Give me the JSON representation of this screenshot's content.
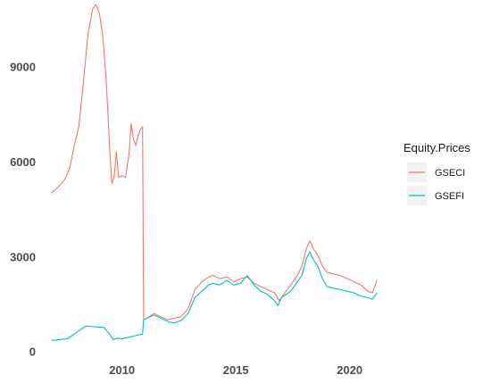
{
  "chart_data": {
    "type": "line",
    "title": "",
    "xlabel": "",
    "ylabel": "",
    "xlim": [
      2006.6,
      2021.5
    ],
    "ylim": [
      -150,
      11100
    ],
    "x_ticks": [
      {
        "value": 2010,
        "label": "2010"
      },
      {
        "value": 2015,
        "label": "2015"
      },
      {
        "value": 2020,
        "label": "2020"
      }
    ],
    "y_ticks": [
      {
        "value": 0,
        "label": "0"
      },
      {
        "value": 3000,
        "label": "3000"
      },
      {
        "value": 6000,
        "label": "6000"
      },
      {
        "value": 9000,
        "label": "9000"
      }
    ],
    "grid": false,
    "legend": {
      "title": "Equity.Prices",
      "position": "right"
    },
    "series": [
      {
        "name": "GSECI",
        "color": "#F8766D",
        "points": [
          [
            2006.9,
            5000
          ],
          [
            2007.2,
            5200
          ],
          [
            2007.5,
            5450
          ],
          [
            2007.7,
            5800
          ],
          [
            2007.9,
            6500
          ],
          [
            2008.1,
            7100
          ],
          [
            2008.3,
            8500
          ],
          [
            2008.5,
            10000
          ],
          [
            2008.7,
            10800
          ],
          [
            2008.85,
            10950
          ],
          [
            2009.0,
            10700
          ],
          [
            2009.15,
            10000
          ],
          [
            2009.3,
            8600
          ],
          [
            2009.45,
            6500
          ],
          [
            2009.55,
            5300
          ],
          [
            2009.65,
            5500
          ],
          [
            2009.75,
            6300
          ],
          [
            2009.85,
            5500
          ],
          [
            2010.0,
            5550
          ],
          [
            2010.15,
            5500
          ],
          [
            2010.3,
            6200
          ],
          [
            2010.4,
            7200
          ],
          [
            2010.5,
            6700
          ],
          [
            2010.6,
            6500
          ],
          [
            2010.7,
            6800
          ],
          [
            2010.8,
            7000
          ],
          [
            2010.9,
            7100
          ],
          [
            2010.95,
            1000
          ],
          [
            2011.1,
            1050
          ],
          [
            2011.4,
            1200
          ],
          [
            2011.7,
            1100
          ],
          [
            2012.0,
            1000
          ],
          [
            2012.3,
            1050
          ],
          [
            2012.6,
            1100
          ],
          [
            2012.9,
            1350
          ],
          [
            2013.2,
            1950
          ],
          [
            2013.5,
            2200
          ],
          [
            2013.8,
            2350
          ],
          [
            2014.0,
            2400
          ],
          [
            2014.3,
            2300
          ],
          [
            2014.6,
            2350
          ],
          [
            2014.9,
            2200
          ],
          [
            2015.2,
            2300
          ],
          [
            2015.5,
            2350
          ],
          [
            2015.8,
            2150
          ],
          [
            2016.1,
            2050
          ],
          [
            2016.4,
            1950
          ],
          [
            2016.7,
            1850
          ],
          [
            2016.9,
            1600
          ],
          [
            2017.1,
            1800
          ],
          [
            2017.4,
            2100
          ],
          [
            2017.7,
            2400
          ],
          [
            2017.9,
            2700
          ],
          [
            2018.1,
            3250
          ],
          [
            2018.25,
            3500
          ],
          [
            2018.4,
            3250
          ],
          [
            2018.6,
            3050
          ],
          [
            2018.8,
            2700
          ],
          [
            2019.0,
            2500
          ],
          [
            2019.3,
            2450
          ],
          [
            2019.6,
            2400
          ],
          [
            2019.9,
            2300
          ],
          [
            2020.2,
            2200
          ],
          [
            2020.5,
            2100
          ],
          [
            2020.8,
            1900
          ],
          [
            2021.0,
            1850
          ],
          [
            2021.2,
            2250
          ]
        ]
      },
      {
        "name": "GSEFI",
        "color": "#00BFC4",
        "points": [
          [
            2006.9,
            350
          ],
          [
            2007.3,
            380
          ],
          [
            2007.6,
            400
          ],
          [
            2008.0,
            600
          ],
          [
            2008.4,
            800
          ],
          [
            2008.8,
            780
          ],
          [
            2009.2,
            760
          ],
          [
            2009.45,
            550
          ],
          [
            2009.6,
            380
          ],
          [
            2009.8,
            420
          ],
          [
            2010.0,
            400
          ],
          [
            2010.3,
            450
          ],
          [
            2010.6,
            500
          ],
          [
            2010.9,
            550
          ],
          [
            2010.95,
            1000
          ],
          [
            2011.1,
            1050
          ],
          [
            2011.4,
            1150
          ],
          [
            2011.7,
            1050
          ],
          [
            2012.0,
            950
          ],
          [
            2012.3,
            900
          ],
          [
            2012.6,
            980
          ],
          [
            2012.9,
            1200
          ],
          [
            2013.2,
            1700
          ],
          [
            2013.5,
            1900
          ],
          [
            2013.8,
            2100
          ],
          [
            2014.0,
            2150
          ],
          [
            2014.3,
            2100
          ],
          [
            2014.6,
            2250
          ],
          [
            2014.9,
            2100
          ],
          [
            2015.2,
            2150
          ],
          [
            2015.5,
            2400
          ],
          [
            2015.8,
            2100
          ],
          [
            2016.1,
            1900
          ],
          [
            2016.4,
            1800
          ],
          [
            2016.7,
            1600
          ],
          [
            2016.85,
            1450
          ],
          [
            2017.0,
            1700
          ],
          [
            2017.4,
            1900
          ],
          [
            2017.7,
            2200
          ],
          [
            2017.9,
            2400
          ],
          [
            2018.1,
            2950
          ],
          [
            2018.25,
            3150
          ],
          [
            2018.4,
            2900
          ],
          [
            2018.6,
            2700
          ],
          [
            2018.8,
            2300
          ],
          [
            2019.0,
            2050
          ],
          [
            2019.3,
            2000
          ],
          [
            2019.6,
            1950
          ],
          [
            2019.9,
            1900
          ],
          [
            2020.2,
            1850
          ],
          [
            2020.5,
            1750
          ],
          [
            2020.8,
            1700
          ],
          [
            2021.0,
            1650
          ],
          [
            2021.2,
            1850
          ]
        ]
      }
    ]
  }
}
